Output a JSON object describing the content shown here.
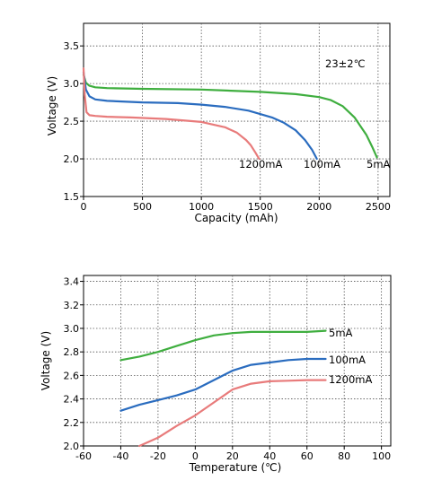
{
  "chart_data": [
    {
      "type": "line",
      "title": "",
      "xlabel": "Capacity (mAh)",
      "ylabel": "Voltage (V)",
      "xlim": [
        0,
        2600
      ],
      "ylim": [
        1.5,
        3.8
      ],
      "xticks": [
        0,
        500,
        1000,
        1500,
        2000,
        2500
      ],
      "yticks": [
        1.5,
        2.0,
        2.5,
        3.0,
        3.5
      ],
      "xtick_labels": [
        "0",
        "500",
        "1000",
        "1500",
        "2000",
        "2500"
      ],
      "ytick_labels": [
        "1.5",
        "2.0",
        "2.5",
        "3.0",
        "3.5"
      ],
      "grid": "dotted",
      "annotation": "23±2℃",
      "series": [
        {
          "name": "5mA",
          "color": "#3fae3f",
          "x": [
            0,
            20,
            50,
            100,
            200,
            500,
            1000,
            1500,
            1800,
            2000,
            2100,
            2200,
            2300,
            2400,
            2450,
            2490
          ],
          "y": [
            3.12,
            3.01,
            2.97,
            2.95,
            2.94,
            2.93,
            2.92,
            2.89,
            2.86,
            2.82,
            2.78,
            2.7,
            2.55,
            2.32,
            2.16,
            2.02
          ]
        },
        {
          "name": "100mA",
          "color": "#2a6cbf",
          "x": [
            0,
            20,
            50,
            100,
            200,
            500,
            800,
            1000,
            1200,
            1400,
            1600,
            1700,
            1800,
            1880,
            1940,
            1980
          ],
          "y": [
            3.15,
            2.92,
            2.83,
            2.79,
            2.77,
            2.75,
            2.74,
            2.72,
            2.69,
            2.64,
            2.55,
            2.48,
            2.38,
            2.25,
            2.12,
            2.0
          ]
        },
        {
          "name": "1200mA",
          "color": "#e87b7b",
          "x": [
            0,
            10,
            25,
            50,
            100,
            200,
            400,
            700,
            1000,
            1200,
            1300,
            1380,
            1420,
            1460,
            1490
          ],
          "y": [
            3.2,
            2.85,
            2.62,
            2.58,
            2.57,
            2.56,
            2.55,
            2.53,
            2.49,
            2.42,
            2.35,
            2.25,
            2.18,
            2.08,
            2.0
          ]
        }
      ]
    },
    {
      "type": "line",
      "title": "",
      "xlabel": "Temperature (℃)",
      "ylabel": "Voltage (V)",
      "xlim": [
        -60,
        105
      ],
      "ylim": [
        2.0,
        3.45
      ],
      "xticks": [
        -60,
        -40,
        -20,
        0,
        20,
        40,
        60,
        80,
        100
      ],
      "yticks": [
        2.0,
        2.2,
        2.4,
        2.6,
        2.8,
        3.0,
        3.2,
        3.4
      ],
      "xtick_labels": [
        "-60",
        "-40",
        "-20",
        "0",
        "20",
        "40",
        "60",
        "80",
        "100"
      ],
      "ytick_labels": [
        "2.0",
        "2.2",
        "2.4",
        "2.6",
        "2.8",
        "3.0",
        "3.2",
        "3.4"
      ],
      "grid": "dotted",
      "series": [
        {
          "name": "5mA",
          "color": "#3fae3f",
          "x": [
            -40,
            -30,
            -20,
            -10,
            0,
            10,
            20,
            30,
            40,
            50,
            60,
            70
          ],
          "y": [
            2.73,
            2.76,
            2.8,
            2.85,
            2.9,
            2.94,
            2.96,
            2.97,
            2.97,
            2.97,
            2.97,
            2.98
          ]
        },
        {
          "name": "100mA",
          "color": "#2a6cbf",
          "x": [
            -40,
            -30,
            -20,
            -10,
            0,
            10,
            20,
            30,
            40,
            50,
            60,
            70
          ],
          "y": [
            2.3,
            2.35,
            2.39,
            2.43,
            2.48,
            2.56,
            2.64,
            2.69,
            2.71,
            2.73,
            2.74,
            2.74
          ]
        },
        {
          "name": "1200mA",
          "color": "#e87b7b",
          "x": [
            -30,
            -20,
            -10,
            0,
            10,
            20,
            30,
            40,
            50,
            60,
            70
          ],
          "y": [
            2.0,
            2.07,
            2.17,
            2.26,
            2.37,
            2.48,
            2.53,
            2.55,
            2.555,
            2.56,
            2.56
          ]
        }
      ]
    }
  ]
}
